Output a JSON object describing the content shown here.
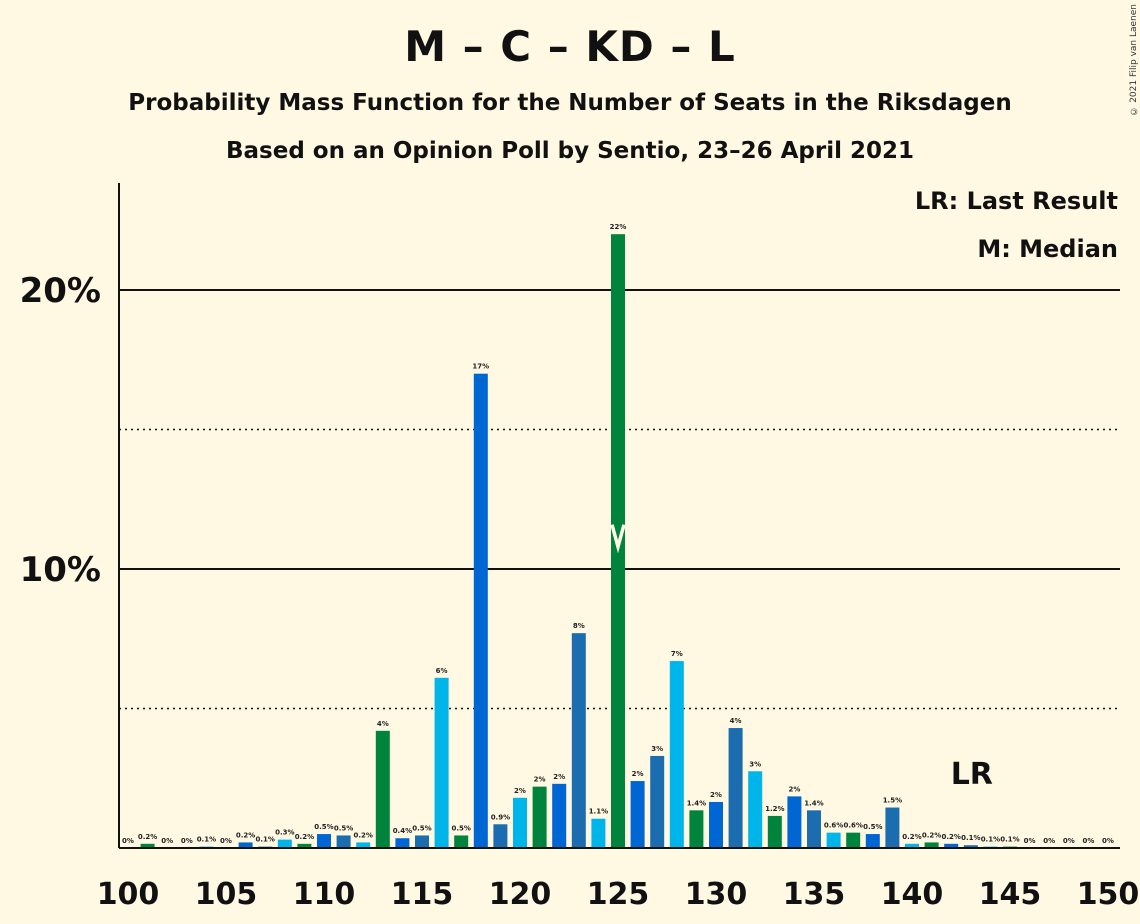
{
  "header": {
    "title": "M – C – KD – L",
    "subtitle": "Probability Mass Function for the Number of Seats in the Riksdagen",
    "subtitle2": "Based on an Opinion Poll by Sentio, 23–26 April 2021",
    "copyright": "© 2021 Filip van Laenen"
  },
  "legend": {
    "lr": "LR: Last Result",
    "median": "M: Median"
  },
  "colors": {
    "background": "#FFF8E3",
    "dark_blue": "#0066D4",
    "light_blue": "#00B5EA",
    "green": "#00843D",
    "mid_blue": "#1C6DB0"
  },
  "chart_data": {
    "type": "bar",
    "title": "M – C – KD – L",
    "xlabel": "",
    "ylabel": "",
    "xlim": [
      100,
      150
    ],
    "ylim": [
      0,
      24
    ],
    "x_ticks": [
      "100",
      "105",
      "110",
      "115",
      "120",
      "125",
      "130",
      "135",
      "140",
      "145",
      "150"
    ],
    "y_ticks": [
      {
        "value": 10,
        "label": "10%"
      },
      {
        "value": 20,
        "label": "20%"
      }
    ],
    "dotted_lines": [
      5,
      15
    ],
    "solid_lines": [
      10,
      20
    ],
    "median": 125,
    "last_result": 143,
    "last_result_label": "LR",
    "bars": [
      {
        "seats": 100,
        "value": 0.0,
        "label": "0%",
        "color": "#0066D4"
      },
      {
        "seats": 101,
        "value": 0.15,
        "label": "0.2%",
        "color": "#00843D"
      },
      {
        "seats": 102,
        "value": 0.0,
        "label": "0%",
        "color": "#1C6DB0"
      },
      {
        "seats": 103,
        "value": 0.0,
        "label": "0%",
        "color": "#0066D4"
      },
      {
        "seats": 104,
        "value": 0.05,
        "label": "0.1%",
        "color": "#00B5EA"
      },
      {
        "seats": 105,
        "value": 0.0,
        "label": "0%",
        "color": "#00843D"
      },
      {
        "seats": 106,
        "value": 0.2,
        "label": "0.2%",
        "color": "#0066D4"
      },
      {
        "seats": 107,
        "value": 0.05,
        "label": "0.1%",
        "color": "#1C6DB0"
      },
      {
        "seats": 108,
        "value": 0.3,
        "label": "0.3%",
        "color": "#00B5EA"
      },
      {
        "seats": 109,
        "value": 0.15,
        "label": "0.2%",
        "color": "#00843D"
      },
      {
        "seats": 110,
        "value": 0.5,
        "label": "0.5%",
        "color": "#0066D4"
      },
      {
        "seats": 111,
        "value": 0.45,
        "label": "0.5%",
        "color": "#1C6DB0"
      },
      {
        "seats": 112,
        "value": 0.2,
        "label": "0.2%",
        "color": "#00B5EA"
      },
      {
        "seats": 113,
        "value": 4.2,
        "label": "4%",
        "color": "#00843D"
      },
      {
        "seats": 114,
        "value": 0.35,
        "label": "0.4%",
        "color": "#0066D4"
      },
      {
        "seats": 115,
        "value": 0.45,
        "label": "0.5%",
        "color": "#1C6DB0"
      },
      {
        "seats": 116,
        "value": 6.1,
        "label": "6%",
        "color": "#00B5EA"
      },
      {
        "seats": 117,
        "value": 0.45,
        "label": "0.5%",
        "color": "#00843D"
      },
      {
        "seats": 118,
        "value": 17.0,
        "label": "17%",
        "color": "#0066D4"
      },
      {
        "seats": 119,
        "value": 0.85,
        "label": "0.9%",
        "color": "#1C6DB0"
      },
      {
        "seats": 120,
        "value": 1.8,
        "label": "2%",
        "color": "#00B5EA"
      },
      {
        "seats": 121,
        "value": 2.2,
        "label": "2%",
        "color": "#00843D"
      },
      {
        "seats": 122,
        "value": 2.3,
        "label": "2%",
        "color": "#0066D4"
      },
      {
        "seats": 123,
        "value": 7.7,
        "label": "8%",
        "color": "#1C6DB0"
      },
      {
        "seats": 124,
        "value": 1.05,
        "label": "1.1%",
        "color": "#00B5EA"
      },
      {
        "seats": 125,
        "value": 22.0,
        "label": "22%",
        "color": "#00843D"
      },
      {
        "seats": 126,
        "value": 2.4,
        "label": "2%",
        "color": "#0066D4"
      },
      {
        "seats": 127,
        "value": 3.3,
        "label": "3%",
        "color": "#1C6DB0"
      },
      {
        "seats": 128,
        "value": 6.7,
        "label": "7%",
        "color": "#00B5EA"
      },
      {
        "seats": 129,
        "value": 1.35,
        "label": "1.4%",
        "color": "#00843D"
      },
      {
        "seats": 130,
        "value": 1.65,
        "label": "2%",
        "color": "#0066D4"
      },
      {
        "seats": 131,
        "value": 4.3,
        "label": "4%",
        "color": "#1C6DB0"
      },
      {
        "seats": 132,
        "value": 2.75,
        "label": "3%",
        "color": "#00B5EA"
      },
      {
        "seats": 133,
        "value": 1.15,
        "label": "1.2%",
        "color": "#00843D"
      },
      {
        "seats": 134,
        "value": 1.85,
        "label": "2%",
        "color": "#0066D4"
      },
      {
        "seats": 135,
        "value": 1.35,
        "label": "1.4%",
        "color": "#1C6DB0"
      },
      {
        "seats": 136,
        "value": 0.55,
        "label": "0.6%",
        "color": "#00B5EA"
      },
      {
        "seats": 137,
        "value": 0.55,
        "label": "0.6%",
        "color": "#00843D"
      },
      {
        "seats": 138,
        "value": 0.5,
        "label": "0.5%",
        "color": "#0066D4"
      },
      {
        "seats": 139,
        "value": 1.45,
        "label": "1.5%",
        "color": "#1C6DB0"
      },
      {
        "seats": 140,
        "value": 0.15,
        "label": "0.2%",
        "color": "#00B5EA"
      },
      {
        "seats": 141,
        "value": 0.2,
        "label": "0.2%",
        "color": "#00843D"
      },
      {
        "seats": 142,
        "value": 0.15,
        "label": "0.2%",
        "color": "#0066D4"
      },
      {
        "seats": 143,
        "value": 0.1,
        "label": "0.1%",
        "color": "#1C6DB0"
      },
      {
        "seats": 144,
        "value": 0.05,
        "label": "0.1%",
        "color": "#00B5EA"
      },
      {
        "seats": 145,
        "value": 0.05,
        "label": "0.1%",
        "color": "#00843D"
      },
      {
        "seats": 146,
        "value": 0.0,
        "label": "0%",
        "color": "#0066D4"
      },
      {
        "seats": 147,
        "value": 0.0,
        "label": "0%",
        "color": "#1C6DB0"
      },
      {
        "seats": 148,
        "value": 0.0,
        "label": "0%",
        "color": "#00B5EA"
      },
      {
        "seats": 149,
        "value": 0.0,
        "label": "0%",
        "color": "#00843D"
      },
      {
        "seats": 150,
        "value": 0.0,
        "label": "0%",
        "color": "#0066D4"
      }
    ]
  }
}
